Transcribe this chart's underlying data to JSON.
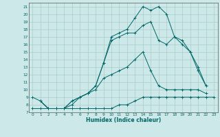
{
  "title": "",
  "xlabel": "Humidex (Indice chaleur)",
  "ylabel": "",
  "background_color": "#cde8e8",
  "grid_color": "#aacccc",
  "line_color": "#006666",
  "xlim": [
    -0.5,
    23.5
  ],
  "ylim": [
    7,
    21.5
  ],
  "xticks": [
    0,
    1,
    2,
    3,
    4,
    5,
    6,
    7,
    8,
    9,
    10,
    11,
    12,
    13,
    14,
    15,
    16,
    17,
    18,
    19,
    20,
    21,
    22,
    23
  ],
  "yticks": [
    7,
    8,
    9,
    10,
    11,
    12,
    13,
    14,
    15,
    16,
    17,
    18,
    19,
    20,
    21
  ],
  "curves": [
    {
      "x": [
        0,
        1,
        2,
        3,
        4,
        5,
        6,
        7,
        8,
        9,
        10,
        11,
        12,
        13,
        14,
        15,
        16,
        17,
        18,
        19,
        20,
        21,
        22,
        23
      ],
      "y": [
        7.5,
        7.5,
        7.5,
        7.5,
        7.5,
        7.5,
        7.5,
        7.5,
        7.5,
        7.5,
        7.5,
        8.0,
        8.0,
        8.5,
        9.0,
        9.0,
        9.0,
        9.0,
        9.0,
        9.0,
        9.0,
        9.0,
        9.0,
        9.0
      ]
    },
    {
      "x": [
        0,
        1,
        2,
        3,
        4,
        5,
        6,
        7,
        8,
        9,
        10,
        11,
        12,
        13,
        14,
        15,
        16,
        17,
        18,
        19,
        20,
        21,
        22
      ],
      "y": [
        9.0,
        8.5,
        7.5,
        7.5,
        7.5,
        8.0,
        9.0,
        9.5,
        10.0,
        11.5,
        12.0,
        12.5,
        13.0,
        14.0,
        15.0,
        12.5,
        10.5,
        10.0,
        10.0,
        10.0,
        10.0,
        10.0,
        9.5
      ]
    },
    {
      "x": [
        1,
        2,
        3,
        4,
        5,
        6,
        7,
        8,
        9,
        10,
        11,
        12,
        13,
        14,
        15,
        16,
        17,
        18,
        19,
        20,
        21,
        22
      ],
      "y": [
        8.5,
        7.5,
        7.5,
        7.5,
        8.5,
        9.0,
        9.5,
        10.5,
        13.5,
        16.5,
        17.0,
        17.5,
        17.5,
        18.5,
        19.0,
        16.5,
        16.0,
        17.0,
        16.0,
        15.0,
        12.5,
        10.5
      ]
    },
    {
      "x": [
        1,
        2,
        3,
        4,
        5,
        6,
        7,
        8,
        9,
        10,
        11,
        12,
        13,
        14,
        15,
        16,
        17,
        18,
        19,
        20,
        21,
        22
      ],
      "y": [
        8.5,
        7.5,
        7.5,
        7.5,
        8.5,
        9.0,
        9.5,
        10.5,
        13.5,
        17.0,
        17.5,
        18.0,
        19.5,
        21.0,
        20.5,
        21.0,
        20.0,
        17.0,
        16.5,
        15.0,
        13.0,
        10.5
      ]
    }
  ]
}
